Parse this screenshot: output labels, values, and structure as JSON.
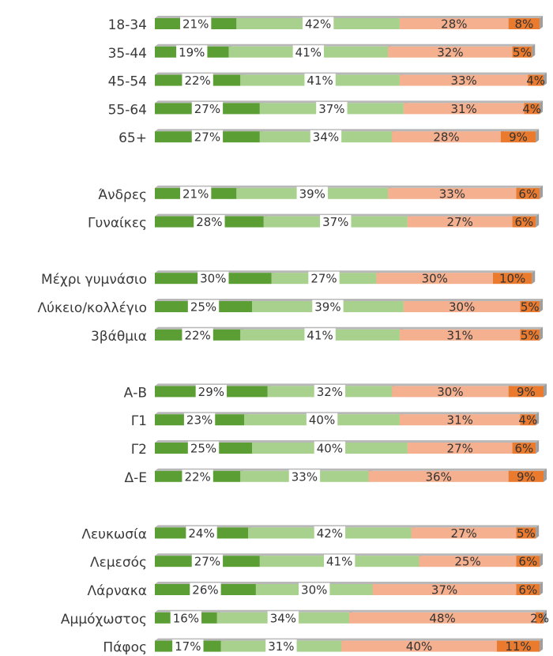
{
  "chart_data": {
    "type": "stacked-bar-horizontal",
    "categories": [
      "18-34",
      "35-44",
      "45-54",
      "55-64",
      "65+",
      null,
      "Άνδρες",
      "Γυναίκες",
      null,
      "Μέχρι γυμνάσιο",
      "Λύκειο/κολλέγιο",
      "3βάθμια",
      null,
      "Α-Β",
      "Γ1",
      "Γ2",
      "Δ-Ε",
      null,
      "Λευκωσία",
      "Λεμεσός",
      "Λάρνακα",
      "Αμμόχωστος",
      "Πάφος"
    ],
    "xlim": [
      0,
      100
    ],
    "series": [
      {
        "color": "#5b9f34",
        "values": [
          21,
          19,
          22,
          27,
          27,
          null,
          21,
          28,
          null,
          30,
          25,
          22,
          null,
          29,
          23,
          25,
          22,
          null,
          24,
          27,
          26,
          16,
          17
        ],
        "value_labels": [
          "21%",
          "19%",
          "22%",
          "27%",
          "27%",
          null,
          "21%",
          "28%",
          null,
          "30%",
          "25%",
          "22%",
          null,
          "29%",
          "23%",
          "25%",
          "22%",
          null,
          "24%",
          "27%",
          "26%",
          "16%",
          "17%"
        ]
      },
      {
        "color": "#a9d18e",
        "values": [
          42,
          41,
          41,
          37,
          34,
          null,
          39,
          37,
          null,
          27,
          39,
          41,
          null,
          32,
          40,
          40,
          33,
          null,
          42,
          41,
          30,
          34,
          31
        ],
        "value_labels": [
          "42%",
          "41%",
          "41%",
          "37%",
          "34%",
          null,
          "39%",
          "37%",
          null,
          "27%",
          "39%",
          "41%",
          null,
          "32%",
          "40%",
          "40%",
          "33%",
          null,
          "42%",
          "41%",
          "30%",
          "34%",
          "31%"
        ]
      },
      {
        "color": "#f4b08f",
        "values": [
          28,
          32,
          33,
          31,
          28,
          null,
          33,
          27,
          null,
          30,
          30,
          31,
          null,
          30,
          31,
          27,
          36,
          null,
          27,
          25,
          37,
          48,
          40
        ],
        "value_labels": [
          "28%",
          "32%",
          "33%",
          "31%",
          "28%",
          null,
          "33%",
          "27%",
          null,
          "30%",
          "30%",
          "31%",
          null,
          "30%",
          "31%",
          "27%",
          "36%",
          null,
          "27%",
          "25%",
          "37%",
          "48%",
          "40%"
        ]
      },
      {
        "color": "#e97a2e",
        "values": [
          8,
          5,
          4,
          4,
          9,
          null,
          6,
          6,
          null,
          10,
          5,
          5,
          null,
          9,
          4,
          6,
          9,
          null,
          5,
          6,
          6,
          2,
          11
        ],
        "value_labels": [
          "8%",
          "5%",
          "4%",
          "4%",
          "9%",
          null,
          "6%",
          "6%",
          null,
          "10%",
          "5%",
          "5%",
          null,
          "9%",
          "4%",
          "6%",
          "9%",
          null,
          "5%",
          "6%",
          "6%",
          "2%",
          "11%"
        ]
      }
    ]
  }
}
